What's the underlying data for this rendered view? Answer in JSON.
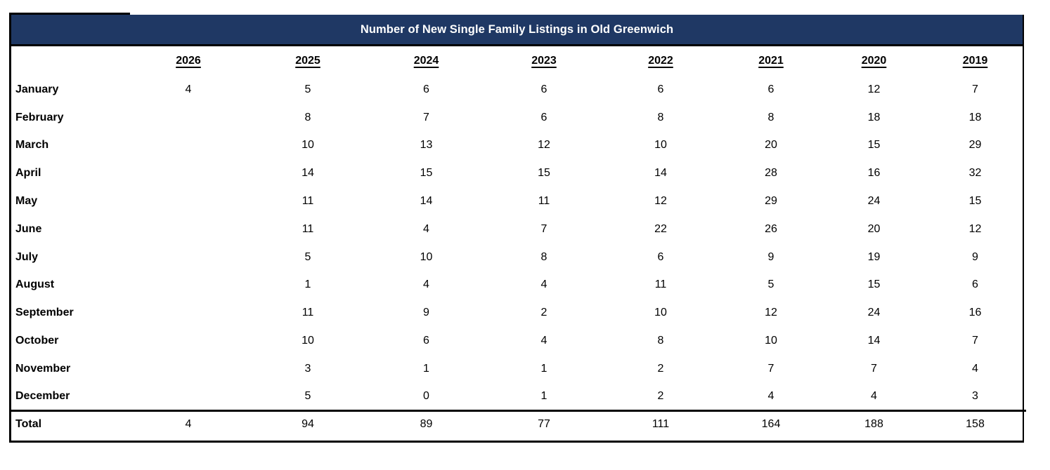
{
  "title": "Number of New Single Family Listings in Old Greenwich",
  "table": {
    "corner_label": "",
    "columns": [
      "2026",
      "2025",
      "2024",
      "2023",
      "2022",
      "2021",
      "2020",
      "2019"
    ],
    "rows": [
      {
        "label": "January",
        "values": [
          "4",
          "5",
          "6",
          "6",
          "6",
          "6",
          "12",
          "7"
        ]
      },
      {
        "label": "February",
        "values": [
          "",
          "8",
          "7",
          "6",
          "8",
          "8",
          "18",
          "18"
        ]
      },
      {
        "label": "March",
        "values": [
          "",
          "10",
          "13",
          "12",
          "10",
          "20",
          "15",
          "29"
        ]
      },
      {
        "label": "April",
        "values": [
          "",
          "14",
          "15",
          "15",
          "14",
          "28",
          "16",
          "32"
        ]
      },
      {
        "label": "May",
        "values": [
          "",
          "11",
          "14",
          "11",
          "12",
          "29",
          "24",
          "15"
        ]
      },
      {
        "label": "June",
        "values": [
          "",
          "11",
          "4",
          "7",
          "22",
          "26",
          "20",
          "12"
        ]
      },
      {
        "label": "July",
        "values": [
          "",
          "5",
          "10",
          "8",
          "6",
          "9",
          "19",
          "9"
        ]
      },
      {
        "label": "August",
        "values": [
          "",
          "1",
          "4",
          "4",
          "11",
          "5",
          "15",
          "6"
        ]
      },
      {
        "label": "September",
        "values": [
          "",
          "11",
          "9",
          "2",
          "10",
          "12",
          "24",
          "16"
        ]
      },
      {
        "label": "October",
        "values": [
          "",
          "10",
          "6",
          "4",
          "8",
          "10",
          "14",
          "7"
        ]
      },
      {
        "label": "November",
        "values": [
          "",
          "3",
          "1",
          "1",
          "2",
          "7",
          "7",
          "4"
        ]
      },
      {
        "label": "December",
        "values": [
          "",
          "5",
          "0",
          "1",
          "2",
          "4",
          "4",
          "3"
        ]
      }
    ],
    "total": {
      "label": "Total",
      "values": [
        "4",
        "94",
        "89",
        "77",
        "111",
        "164",
        "188",
        "158"
      ]
    }
  },
  "colors": {
    "title_bg": "#1f3864",
    "title_text": "#ffffff",
    "border": "#000000",
    "body_text": "#000000"
  }
}
